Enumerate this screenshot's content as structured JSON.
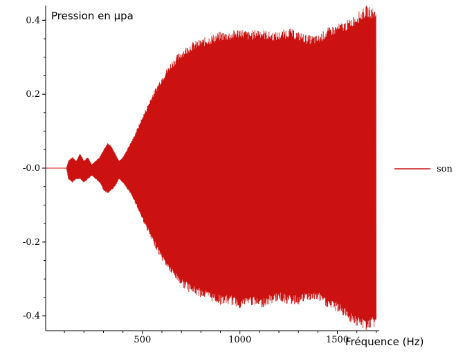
{
  "chart_data": {
    "type": "line",
    "title": "",
    "ylabel": "Pression en µpa",
    "xlabel": "Fréquence (Hz)",
    "xlim": [
      0,
      1700
    ],
    "ylim": [
      -0.44,
      0.44
    ],
    "x_ticks": [
      500,
      1000,
      1500
    ],
    "x_tick_labels": [
      "500",
      "1000",
      "1500"
    ],
    "y_ticks": [
      0.4,
      0.2,
      0.0,
      -0.2,
      -0.4
    ],
    "y_tick_labels": [
      "0.4",
      "0.2",
      "-0.0",
      "-0.2",
      "-0.4"
    ],
    "grid": false,
    "legend_position": "right",
    "series": [
      {
        "name": "son",
        "color": "#cc1111",
        "envelope": {
          "x": [
            0,
            110,
            120,
            140,
            160,
            180,
            200,
            220,
            240,
            260,
            280,
            300,
            320,
            340,
            360,
            380,
            400,
            450,
            500,
            550,
            600,
            650,
            700,
            750,
            800,
            850,
            900,
            950,
            1000,
            1050,
            1100,
            1150,
            1200,
            1250,
            1300,
            1350,
            1400,
            1450,
            1500,
            1550,
            1600,
            1650,
            1700
          ],
          "upper": [
            0,
            0,
            0.02,
            0.03,
            0.02,
            0.04,
            0.02,
            0.03,
            0.01,
            0.02,
            0.03,
            0.05,
            0.07,
            0.06,
            0.04,
            0.02,
            0.03,
            0.08,
            0.14,
            0.2,
            0.25,
            0.29,
            0.32,
            0.34,
            0.35,
            0.36,
            0.37,
            0.37,
            0.38,
            0.37,
            0.38,
            0.37,
            0.37,
            0.38,
            0.37,
            0.36,
            0.36,
            0.38,
            0.39,
            0.4,
            0.42,
            0.44,
            0.43
          ],
          "lower": [
            0,
            0,
            -0.03,
            -0.04,
            -0.03,
            -0.03,
            -0.04,
            -0.03,
            -0.02,
            -0.03,
            -0.04,
            -0.06,
            -0.07,
            -0.06,
            -0.05,
            -0.03,
            -0.04,
            -0.08,
            -0.14,
            -0.2,
            -0.25,
            -0.29,
            -0.32,
            -0.34,
            -0.35,
            -0.36,
            -0.37,
            -0.37,
            -0.38,
            -0.37,
            -0.38,
            -0.37,
            -0.36,
            -0.37,
            -0.37,
            -0.36,
            -0.36,
            -0.38,
            -0.39,
            -0.41,
            -0.43,
            -0.44,
            -0.43
          ]
        }
      }
    ]
  }
}
